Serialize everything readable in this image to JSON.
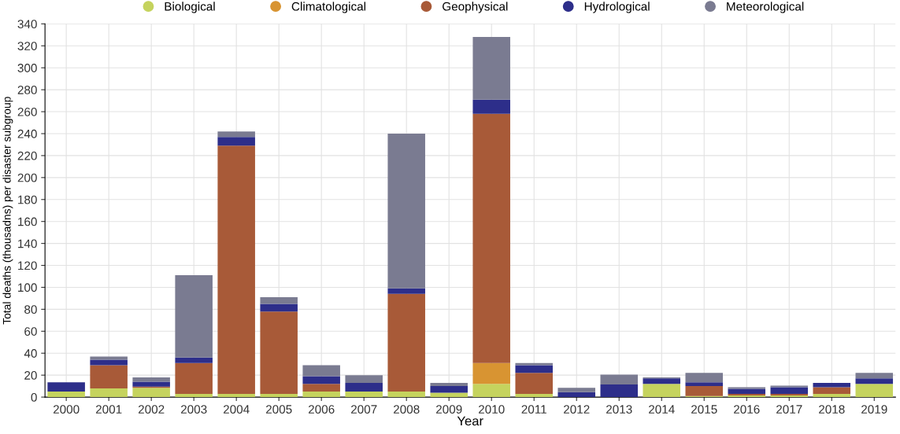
{
  "chart_data": {
    "type": "bar",
    "stacked": true,
    "xlabel": "Year",
    "ylabel": "Total deaths (thousadns) per disaster subgroup",
    "categories": [
      "2000",
      "2001",
      "2002",
      "2003",
      "2004",
      "2005",
      "2006",
      "2007",
      "2008",
      "2009",
      "2010",
      "2011",
      "2012",
      "2013",
      "2014",
      "2015",
      "2016",
      "2017",
      "2018",
      "2019"
    ],
    "series": [
      {
        "name": "Biological",
        "color": "#c5d35e",
        "values": [
          5,
          8,
          8.5,
          3,
          3,
          3,
          5,
          5,
          5,
          4,
          12,
          3,
          null,
          null,
          12,
          1,
          1.5,
          1.5,
          3,
          12
        ]
      },
      {
        "name": "Climatological",
        "color": "#d89432",
        "values": [
          0,
          0,
          0,
          0,
          0,
          0,
          0,
          0,
          0,
          0,
          19,
          0,
          0,
          0,
          0,
          0,
          0,
          0,
          0,
          0
        ]
      },
      {
        "name": "Geophysical",
        "color": "#a85a38",
        "values": [
          0,
          21,
          1,
          28,
          226,
          75,
          7,
          0,
          89,
          0,
          227,
          19,
          0,
          0,
          0,
          9,
          1.5,
          1.5,
          6,
          0
        ]
      },
      {
        "name": "Hydrological",
        "color": "#2d2e8a",
        "values": [
          8.5,
          5,
          4.5,
          5,
          8,
          7,
          7,
          8,
          5,
          6,
          13,
          7,
          4.5,
          11.5,
          5,
          3.5,
          4.5,
          6,
          4,
          5
        ]
      },
      {
        "name": "Meteorological",
        "color": "#7a7b91",
        "values": [
          null,
          3,
          4,
          75,
          5,
          6,
          10,
          7,
          141,
          3,
          57,
          2,
          4,
          9,
          1,
          8.5,
          1.5,
          1.5,
          0,
          5
        ]
      }
    ],
    "ylim": [
      0,
      340
    ],
    "yticks": [
      0,
      20,
      40,
      60,
      80,
      100,
      120,
      140,
      160,
      180,
      200,
      220,
      240,
      260,
      280,
      300,
      320,
      340
    ],
    "grid": true,
    "legend": "top",
    "marker": "circle"
  }
}
